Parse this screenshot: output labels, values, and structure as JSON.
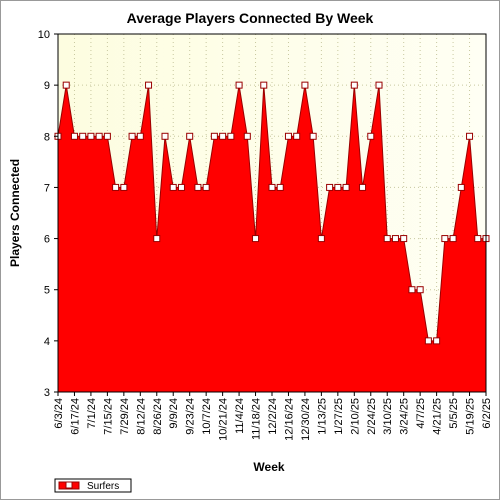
{
  "chart_data": {
    "type": "area",
    "title": "Average Players Connected By Week",
    "xlabel": "Week",
    "ylabel": "Players Connected",
    "ylim": [
      3,
      10
    ],
    "yticks": [
      3,
      4,
      5,
      6,
      7,
      8,
      9,
      10
    ],
    "grid": true,
    "legend_position": "bottom-left",
    "x_tick_labels": [
      "6/3/24",
      "6/17/24",
      "7/1/24",
      "7/15/24",
      "7/29/24",
      "8/12/24",
      "8/26/24",
      "9/9/24",
      "9/23/24",
      "10/7/24",
      "10/21/24",
      "11/4/24",
      "11/18/24",
      "12/2/24",
      "12/16/24",
      "12/30/24",
      "1/13/25",
      "1/27/25",
      "2/10/25",
      "2/24/25",
      "3/10/25",
      "3/24/25",
      "4/7/25",
      "4/21/25",
      "5/5/25",
      "5/19/25",
      "6/2/25"
    ],
    "x": [
      "6/3/24",
      "6/10/24",
      "6/17/24",
      "6/24/24",
      "7/1/24",
      "7/8/24",
      "7/15/24",
      "7/22/24",
      "7/29/24",
      "8/5/24",
      "8/12/24",
      "8/19/24",
      "8/26/24",
      "9/2/24",
      "9/9/24",
      "9/16/24",
      "9/23/24",
      "9/30/24",
      "10/7/24",
      "10/14/24",
      "10/21/24",
      "10/28/24",
      "11/4/24",
      "11/11/24",
      "11/18/24",
      "11/25/24",
      "12/2/24",
      "12/9/24",
      "12/16/24",
      "12/23/24",
      "12/30/24",
      "1/6/25",
      "1/13/25",
      "1/20/25",
      "1/27/25",
      "2/3/25",
      "2/10/25",
      "2/17/25",
      "2/24/25",
      "3/3/25",
      "3/10/25",
      "3/17/25",
      "3/24/25",
      "3/31/25",
      "4/7/25",
      "4/14/25",
      "4/21/25",
      "4/28/25",
      "5/5/25",
      "5/12/25",
      "5/19/25",
      "5/26/25",
      "6/2/25"
    ],
    "series": [
      {
        "name": "Surfers",
        "color": "#ff0000",
        "values": [
          8,
          9,
          8,
          8,
          8,
          8,
          8,
          7,
          7,
          8,
          8,
          9,
          6,
          8,
          7,
          7,
          8,
          7,
          7,
          8,
          8,
          8,
          9,
          8,
          6,
          9,
          7,
          7,
          8,
          8,
          9,
          8,
          6,
          7,
          7,
          7,
          9,
          7,
          8,
          9,
          6,
          6,
          6,
          5,
          5,
          4,
          4,
          6,
          6,
          7,
          8,
          6,
          6
        ]
      }
    ],
    "colors": {
      "plot_background": "#fdfde0",
      "area_fill": "#ff0000",
      "outline": "#990000",
      "grid": "#c8c8a0"
    }
  }
}
